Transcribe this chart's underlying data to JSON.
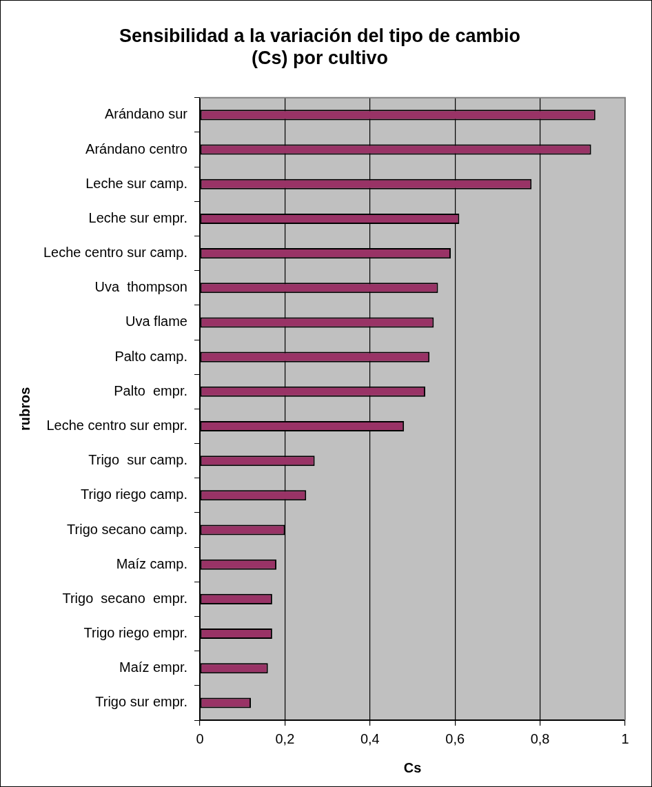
{
  "chart_data": {
    "type": "bar",
    "orientation": "horizontal",
    "title": "Sensibilidad a la variación del tipo de cambio (Cs) por cultivo",
    "xlabel": "Cs",
    "ylabel": "rubros",
    "categories": [
      "Arándano sur",
      "Arándano centro",
      "Leche sur camp.",
      "Leche sur empr.",
      "Leche centro sur camp.",
      "Uva  thompson",
      "Uva flame",
      "Palto camp.",
      "Palto  empr.",
      "Leche centro sur empr.",
      "Trigo  sur camp.",
      "Trigo riego camp.",
      "Trigo secano camp.",
      "Maíz camp.",
      "Trigo  secano  empr.",
      "Trigo riego empr.",
      "Maíz empr.",
      "Trigo sur empr."
    ],
    "values": [
      0.93,
      0.92,
      0.78,
      0.61,
      0.59,
      0.56,
      0.55,
      0.54,
      0.53,
      0.48,
      0.27,
      0.25,
      0.2,
      0.18,
      0.17,
      0.17,
      0.16,
      0.12
    ],
    "color": "#993366",
    "xlim": [
      0,
      1
    ],
    "xticks": [
      0,
      {
        "value": 0.2,
        "label": "0,2"
      },
      {
        "value": 0.4,
        "label": "0,4"
      },
      {
        "value": 0.6,
        "label": "0,6"
      },
      {
        "value": 0.8,
        "label": "0,8"
      },
      1
    ],
    "grid": "x",
    "legend": false
  }
}
